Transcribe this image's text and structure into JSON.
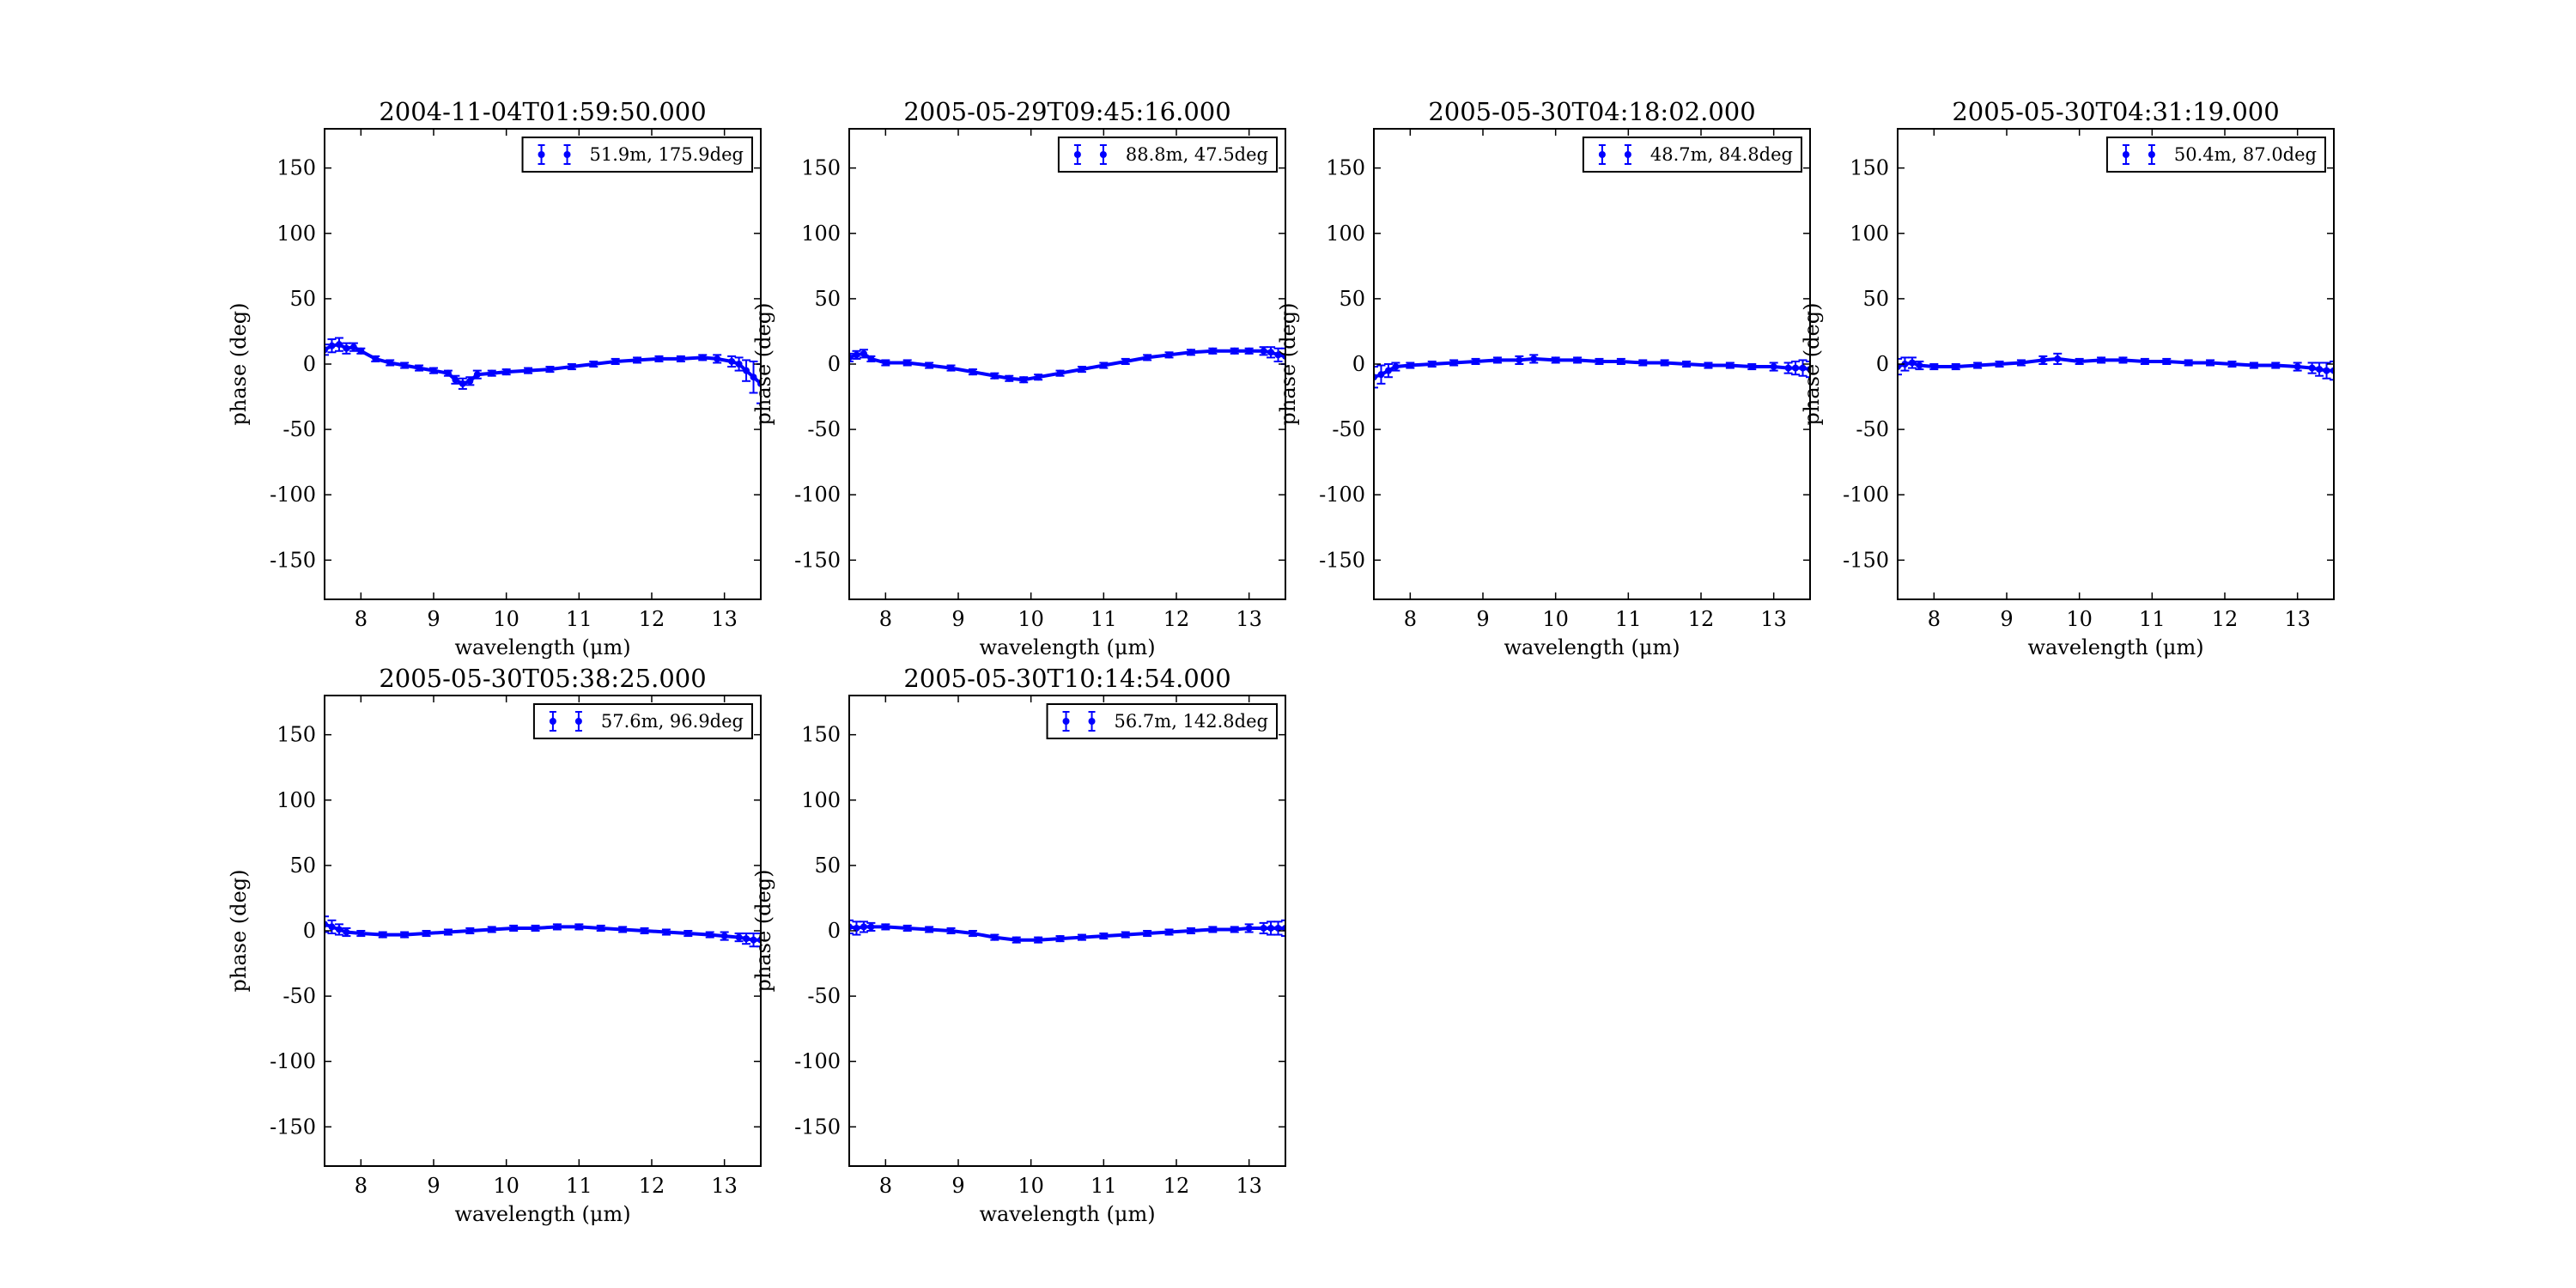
{
  "chart_data": [
    {
      "type": "scatter",
      "title": "2004-11-04T01:59:50.000",
      "xlabel": "wavelength (μm)",
      "ylabel": "phase (deg)",
      "xlim": [
        7.5,
        13.5
      ],
      "ylim": [
        -180,
        180
      ],
      "xticks": [
        8,
        9,
        10,
        11,
        12,
        13
      ],
      "yticks": [
        -150,
        -100,
        -50,
        0,
        50,
        100,
        150
      ],
      "legend_position": "top-right",
      "grid": false,
      "color": "#0000ff",
      "series": [
        {
          "name": "51.9m, 175.9deg",
          "x": [
            7.5,
            7.6,
            7.7,
            7.8,
            7.9,
            8.0,
            8.2,
            8.4,
            8.6,
            8.8,
            9.0,
            9.2,
            9.3,
            9.4,
            9.5,
            9.6,
            9.8,
            10.0,
            10.3,
            10.6,
            10.9,
            11.2,
            11.5,
            11.8,
            12.1,
            12.4,
            12.7,
            12.9,
            13.1,
            13.2,
            13.3,
            13.4,
            13.5
          ],
          "y": [
            11,
            14,
            15,
            12,
            13,
            10,
            4,
            1,
            -1,
            -3,
            -5,
            -7,
            -12,
            -15,
            -13,
            -8,
            -7,
            -6,
            -5,
            -4,
            -2,
            0,
            2,
            3,
            4,
            4,
            5,
            4,
            2,
            0,
            -5,
            -10,
            -15
          ],
          "err": [
            4,
            5,
            5,
            4,
            3,
            2,
            2,
            2,
            2,
            2,
            2,
            2,
            3,
            4,
            3,
            3,
            2,
            2,
            2,
            2,
            2,
            2,
            2,
            2,
            2,
            2,
            2,
            3,
            4,
            5,
            8,
            12,
            15
          ]
        }
      ]
    },
    {
      "type": "scatter",
      "title": "2005-05-29T09:45:16.000",
      "xlabel": "wavelength (μm)",
      "ylabel": "phase (deg)",
      "xlim": [
        7.5,
        13.5
      ],
      "ylim": [
        -180,
        180
      ],
      "xticks": [
        8,
        9,
        10,
        11,
        12,
        13
      ],
      "yticks": [
        -150,
        -100,
        -50,
        0,
        50,
        100,
        150
      ],
      "legend_position": "top-right",
      "grid": false,
      "color": "#0000ff",
      "series": [
        {
          "name": "88.8m, 47.5deg",
          "x": [
            7.5,
            7.6,
            7.7,
            7.8,
            8.0,
            8.3,
            8.6,
            8.9,
            9.2,
            9.5,
            9.7,
            9.9,
            10.1,
            10.4,
            10.7,
            11.0,
            11.3,
            11.6,
            11.9,
            12.2,
            12.5,
            12.8,
            13.0,
            13.2,
            13.3,
            13.4,
            13.5
          ],
          "y": [
            5,
            7,
            8,
            4,
            1,
            1,
            -1,
            -3,
            -6,
            -9,
            -11,
            -12,
            -10,
            -7,
            -4,
            -1,
            2,
            5,
            7,
            9,
            10,
            10,
            10,
            10,
            9,
            7,
            6
          ],
          "err": [
            3,
            3,
            3,
            2,
            2,
            2,
            2,
            2,
            2,
            2,
            2,
            2,
            2,
            2,
            2,
            2,
            2,
            2,
            2,
            2,
            2,
            2,
            2,
            3,
            4,
            5,
            6
          ]
        }
      ]
    },
    {
      "type": "scatter",
      "title": "2005-05-30T04:18:02.000",
      "xlabel": "wavelength (μm)",
      "ylabel": "phase (deg)",
      "xlim": [
        7.5,
        13.5
      ],
      "ylim": [
        -180,
        180
      ],
      "xticks": [
        8,
        9,
        10,
        11,
        12,
        13
      ],
      "yticks": [
        -150,
        -100,
        -50,
        0,
        50,
        100,
        150
      ],
      "legend_position": "top-right",
      "grid": false,
      "color": "#0000ff",
      "series": [
        {
          "name": "48.7m, 84.8deg",
          "x": [
            7.5,
            7.6,
            7.7,
            7.8,
            8.0,
            8.3,
            8.6,
            8.9,
            9.2,
            9.5,
            9.7,
            10.0,
            10.3,
            10.6,
            10.9,
            11.2,
            11.5,
            11.8,
            12.1,
            12.4,
            12.7,
            13.0,
            13.2,
            13.3,
            13.4,
            13.5
          ],
          "y": [
            -10,
            -8,
            -5,
            -2,
            -1,
            0,
            1,
            2,
            3,
            3,
            4,
            3,
            3,
            2,
            2,
            1,
            1,
            0,
            -1,
            -1,
            -2,
            -2,
            -3,
            -3,
            -3,
            -4
          ],
          "err": [
            8,
            7,
            5,
            3,
            2,
            2,
            2,
            2,
            2,
            3,
            3,
            2,
            2,
            2,
            2,
            2,
            2,
            2,
            2,
            2,
            2,
            3,
            4,
            5,
            6,
            6
          ]
        }
      ]
    },
    {
      "type": "scatter",
      "title": "2005-05-30T04:31:19.000",
      "xlabel": "wavelength (μm)",
      "ylabel": "phase (deg)",
      "xlim": [
        7.5,
        13.5
      ],
      "ylim": [
        -180,
        180
      ],
      "xticks": [
        8,
        9,
        10,
        11,
        12,
        13
      ],
      "yticks": [
        -150,
        -100,
        -50,
        0,
        50,
        100,
        150
      ],
      "legend_position": "top-right",
      "grid": false,
      "color": "#0000ff",
      "series": [
        {
          "name": "50.4m, 87.0deg",
          "x": [
            7.5,
            7.6,
            7.7,
            7.8,
            8.0,
            8.3,
            8.6,
            8.9,
            9.2,
            9.5,
            9.7,
            10.0,
            10.3,
            10.6,
            10.9,
            11.2,
            11.5,
            11.8,
            12.1,
            12.4,
            12.7,
            13.0,
            13.2,
            13.3,
            13.4,
            13.5
          ],
          "y": [
            -2,
            0,
            1,
            -1,
            -2,
            -2,
            -1,
            0,
            1,
            3,
            4,
            2,
            3,
            3,
            2,
            2,
            1,
            1,
            0,
            -1,
            -1,
            -2,
            -3,
            -4,
            -5,
            -5
          ],
          "err": [
            6,
            5,
            4,
            3,
            2,
            2,
            2,
            2,
            2,
            3,
            4,
            2,
            2,
            2,
            2,
            2,
            2,
            2,
            2,
            2,
            2,
            3,
            4,
            5,
            6,
            7
          ]
        }
      ]
    },
    {
      "type": "scatter",
      "title": "2005-05-30T05:38:25.000",
      "xlabel": "wavelength (μm)",
      "ylabel": "phase (deg)",
      "xlim": [
        7.5,
        13.5
      ],
      "ylim": [
        -180,
        180
      ],
      "xticks": [
        8,
        9,
        10,
        11,
        12,
        13
      ],
      "yticks": [
        -150,
        -100,
        -50,
        0,
        50,
        100,
        150
      ],
      "legend_position": "top-right",
      "grid": false,
      "color": "#0000ff",
      "series": [
        {
          "name": "57.6m, 96.9deg",
          "x": [
            7.5,
            7.6,
            7.7,
            7.8,
            8.0,
            8.3,
            8.6,
            8.9,
            9.2,
            9.5,
            9.8,
            10.1,
            10.4,
            10.7,
            11.0,
            11.3,
            11.6,
            11.9,
            12.2,
            12.5,
            12.8,
            13.0,
            13.2,
            13.3,
            13.4,
            13.5
          ],
          "y": [
            5,
            3,
            1,
            -1,
            -2,
            -3,
            -3,
            -2,
            -1,
            0,
            1,
            2,
            2,
            3,
            3,
            2,
            1,
            0,
            -1,
            -2,
            -3,
            -4,
            -5,
            -6,
            -7,
            -7
          ],
          "err": [
            6,
            5,
            4,
            3,
            2,
            2,
            2,
            2,
            2,
            2,
            2,
            2,
            2,
            2,
            2,
            2,
            2,
            2,
            2,
            2,
            2,
            3,
            3,
            4,
            5,
            5
          ]
        }
      ]
    },
    {
      "type": "scatter",
      "title": "2005-05-30T10:14:54.000",
      "xlabel": "wavelength (μm)",
      "ylabel": "phase (deg)",
      "xlim": [
        7.5,
        13.5
      ],
      "ylim": [
        -180,
        180
      ],
      "xticks": [
        8,
        9,
        10,
        11,
        12,
        13
      ],
      "yticks": [
        -150,
        -100,
        -50,
        0,
        50,
        100,
        150
      ],
      "legend_position": "top-right",
      "grid": false,
      "color": "#0000ff",
      "series": [
        {
          "name": "56.7m, 142.8deg",
          "x": [
            7.5,
            7.6,
            7.7,
            7.8,
            8.0,
            8.3,
            8.6,
            8.9,
            9.2,
            9.5,
            9.8,
            10.1,
            10.4,
            10.7,
            11.0,
            11.3,
            11.6,
            11.9,
            12.2,
            12.5,
            12.8,
            13.0,
            13.2,
            13.3,
            13.4,
            13.5
          ],
          "y": [
            3,
            2,
            3,
            3,
            3,
            2,
            1,
            0,
            -2,
            -5,
            -7,
            -7,
            -6,
            -5,
            -4,
            -3,
            -2,
            -1,
            0,
            1,
            1,
            2,
            2,
            2,
            2,
            2
          ],
          "err": [
            5,
            5,
            4,
            3,
            2,
            2,
            2,
            2,
            2,
            2,
            2,
            2,
            2,
            2,
            2,
            2,
            2,
            2,
            2,
            2,
            2,
            3,
            4,
            5,
            5,
            6
          ]
        }
      ]
    }
  ]
}
